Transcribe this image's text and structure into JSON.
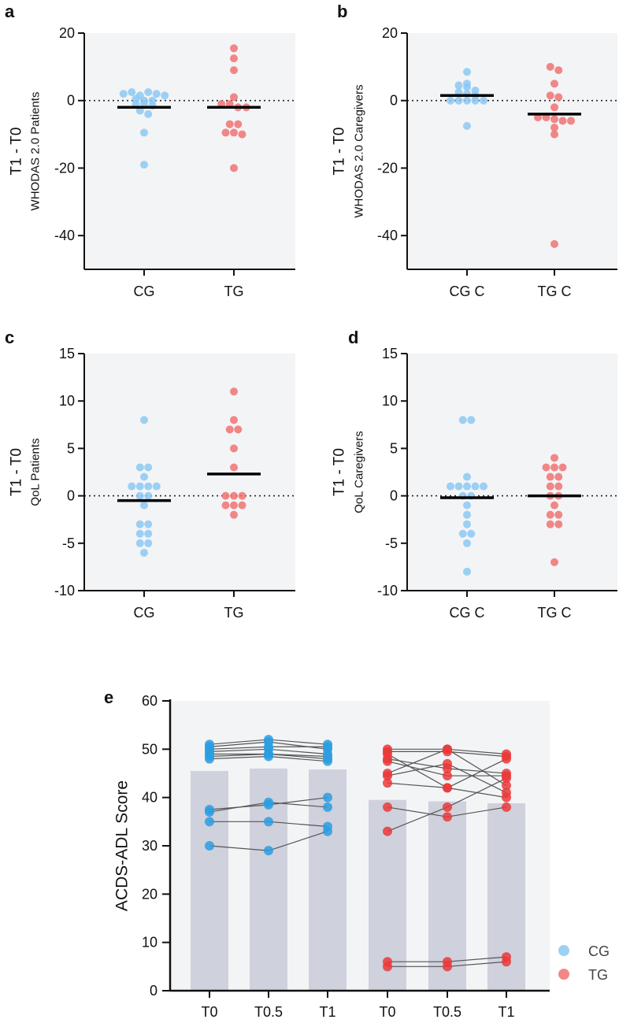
{
  "colors": {
    "cg": "#8cc8f3",
    "tg": "#f07272",
    "cg_e": "#2b9de0",
    "tg_e": "#ea3a3a",
    "bg": "#f3f4f6",
    "bar": "#cfd1dc"
  },
  "chart_data": [
    {
      "panel": "a",
      "type": "scatter",
      "ylabel": "T1 - T0",
      "ylabel2": "WHODAS 2.0 Patients",
      "ylim": [
        -50,
        20
      ],
      "yticks": [
        20,
        0,
        -20,
        -40
      ],
      "categories": [
        "CG",
        "TG"
      ],
      "series": [
        {
          "name": "CG",
          "mean": -2,
          "values": [
            2,
            0.5,
            2.5,
            1.5,
            2.5,
            2,
            1.5,
            0,
            0,
            -1,
            -1,
            -1.5,
            -3,
            -4,
            -9.5,
            -19
          ]
        },
        {
          "name": "TG",
          "mean": -2,
          "values": [
            15.5,
            12.5,
            9,
            1,
            -1,
            -1,
            -2,
            -2,
            -7,
            -7,
            -9.5,
            -9.5,
            -10,
            -20
          ]
        }
      ]
    },
    {
      "panel": "b",
      "type": "scatter",
      "ylabel": "T1 - T0",
      "ylabel2": "WHODAS 2.0 Caregivers",
      "ylim": [
        -50,
        20
      ],
      "yticks": [
        20,
        0,
        -20,
        -40
      ],
      "categories": [
        "CG C",
        "TG C"
      ],
      "series": [
        {
          "name": "CG C",
          "mean": 1.5,
          "values": [
            8.5,
            5,
            4.5,
            4,
            3,
            2.5,
            2,
            1.5,
            0,
            0,
            0,
            0,
            0,
            -7.5
          ]
        },
        {
          "name": "TG C",
          "mean": -4,
          "values": [
            10,
            9,
            5,
            1.5,
            1,
            -2,
            -5,
            -5,
            -5.5,
            -6,
            -6,
            -8,
            -10,
            -42.5
          ]
        }
      ]
    },
    {
      "panel": "c",
      "type": "scatter",
      "ylabel": "T1 - T0",
      "ylabel2": "QoL Patients",
      "ylim": [
        -10,
        15
      ],
      "yticks": [
        15,
        10,
        5,
        0,
        -5,
        -10
      ],
      "categories": [
        "CG",
        "TG"
      ],
      "series": [
        {
          "name": "CG",
          "mean": -0.5,
          "values": [
            8,
            3,
            3,
            2,
            1,
            1,
            1,
            1,
            0,
            0,
            -1,
            -3,
            -3,
            -4,
            -4,
            -5,
            -5,
            -6
          ]
        },
        {
          "name": "TG",
          "mean": 2.3,
          "values": [
            11,
            8,
            7,
            7,
            5,
            3,
            0,
            0,
            0,
            -1,
            -1,
            -1,
            -2
          ]
        }
      ]
    },
    {
      "panel": "d",
      "type": "scatter",
      "ylabel": "T1 - T0",
      "ylabel2": "QoL Caregivers",
      "ylim": [
        -10,
        15
      ],
      "yticks": [
        15,
        10,
        5,
        0,
        -5,
        -10
      ],
      "categories": [
        "CG C",
        "TG C"
      ],
      "series": [
        {
          "name": "CG C",
          "mean": -0.2,
          "values": [
            8,
            8,
            2,
            1,
            1,
            1,
            1,
            1,
            0,
            0,
            -1,
            -2,
            -3,
            -4,
            -4,
            -5,
            -8
          ]
        },
        {
          "name": "TG C",
          "mean": 0,
          "values": [
            4,
            3,
            3,
            3,
            2,
            2,
            1,
            1,
            0,
            0,
            -1,
            -2,
            -2,
            -3,
            -3,
            -7
          ]
        }
      ]
    },
    {
      "panel": "e",
      "type": "bar+paired",
      "ylabel": "ACDS-ADL Score",
      "ylim": [
        0,
        60
      ],
      "yticks": [
        60,
        50,
        40,
        30,
        20,
        10,
        0
      ],
      "categories": [
        "T0",
        "T0.5",
        "T1",
        "T0",
        "T0.5",
        "T1"
      ],
      "bars": [
        45.5,
        46,
        45.8,
        39.5,
        39.2,
        38.8
      ],
      "legend": [
        {
          "name": "CG"
        },
        {
          "name": "TG"
        }
      ],
      "cg_paths": [
        [
          51,
          52,
          51
        ],
        [
          50.5,
          51.5,
          50
        ],
        [
          50,
          50.5,
          50.5
        ],
        [
          49.5,
          50,
          49
        ],
        [
          49,
          49,
          48.5
        ],
        [
          48.5,
          49,
          48
        ],
        [
          48,
          48.5,
          47.5
        ],
        [
          37.5,
          38.5,
          40
        ],
        [
          37,
          39,
          38
        ],
        [
          35,
          35,
          34
        ],
        [
          30,
          29,
          33
        ]
      ],
      "tg_paths": [
        [
          50,
          50,
          49
        ],
        [
          49.5,
          49.5,
          48.5
        ],
        [
          49,
          42,
          48
        ],
        [
          48,
          46,
          45
        ],
        [
          47.5,
          44.5,
          44.5
        ],
        [
          45,
          50,
          42.5
        ],
        [
          44.5,
          47,
          41
        ],
        [
          43,
          42,
          40
        ],
        [
          38,
          36,
          38
        ],
        [
          33,
          38,
          44
        ],
        [
          6,
          6,
          7
        ],
        [
          5,
          5,
          6
        ]
      ]
    }
  ],
  "panel_letters": [
    "a",
    "b",
    "c",
    "d",
    "e"
  ]
}
